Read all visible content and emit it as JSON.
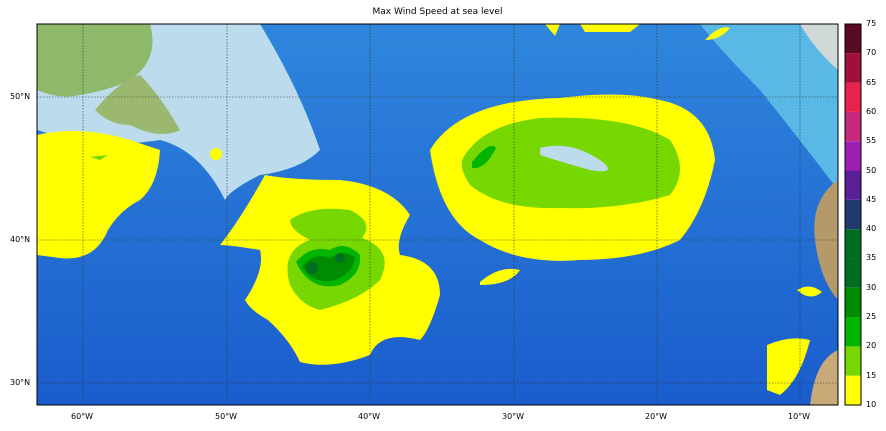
{
  "title": "Max Wind Speed at sea level",
  "lon_labels": [
    "60°W",
    "50°W",
    "40°W",
    "30°W",
    "20°W",
    "10°W"
  ],
  "lat_labels": [
    "50°N",
    "40°N",
    "30°N"
  ],
  "colorbar": {
    "ticks": [
      "75",
      "70",
      "65",
      "60",
      "55",
      "50",
      "45",
      "40",
      "35",
      "30",
      "25",
      "20",
      "15",
      "10"
    ],
    "colors": [
      "#ffff00",
      "#77d700",
      "#00b400",
      "#008c00",
      "#006e21",
      "#006e21",
      "#1f3a6e",
      "#5a1e96",
      "#a01eb4",
      "#c8287a",
      "#e6234f",
      "#a01038",
      "#5a0a23"
    ]
  },
  "colors": {
    "ocean": "#1e64d2",
    "shelf": "#bcdcee",
    "land": "#8eb86a"
  }
}
